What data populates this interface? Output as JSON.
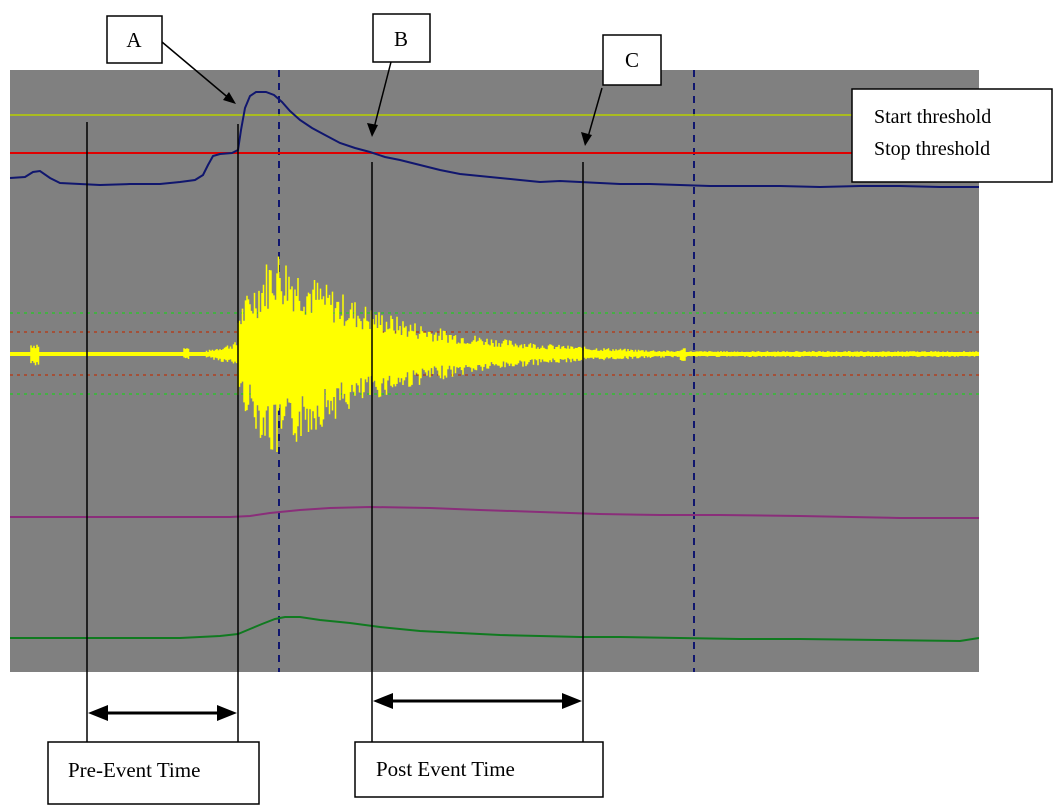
{
  "markers": [
    {
      "id": "a",
      "label": "A"
    },
    {
      "id": "b",
      "label": "B"
    },
    {
      "id": "c",
      "label": "C"
    }
  ],
  "legend": {
    "start_label": "Start threshold",
    "stop_label": "Stop threshold",
    "start_color": "#b8d000",
    "stop_color": "#e00000"
  },
  "intervals": {
    "pre_label": "Pre-Event Time",
    "post_label": "Post Event Time"
  },
  "colors": {
    "plot_background": "#808080",
    "envelope_trace": "#10166e",
    "waveform_trace": "#ffff00",
    "inner_band": "#b04020",
    "outer_band": "#30c030",
    "purple_trace": "#8a2e7a",
    "green_trace": "#107a20",
    "divider": "#10166e"
  }
}
